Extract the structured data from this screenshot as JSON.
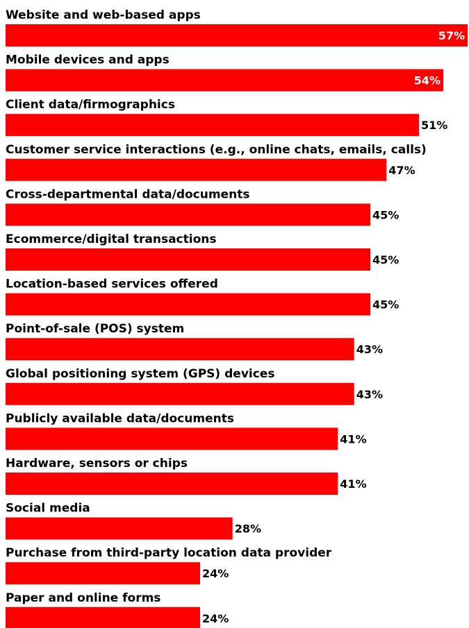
{
  "chart_data": {
    "type": "bar",
    "orientation": "horizontal",
    "title": "",
    "xlabel": "",
    "ylabel": "",
    "xlim": [
      0,
      57
    ],
    "grid": false,
    "legend": "none",
    "bar_color": "#ff0000",
    "categories": [
      "Website and web-based apps",
      "Mobile devices and apps",
      "Client data/firmographics",
      "Customer service interactions (e.g., online chats, emails, calls)",
      "Cross-departmental data/documents",
      "Ecommerce/digital transactions",
      "Location-based services offered",
      "Point-of-sale (POS) system",
      "Global positioning system (GPS) devices",
      "Publicly available data/documents",
      "Hardware, sensors or chips",
      "Social media",
      "Purchase from third-party location data provider",
      "Paper and online forms"
    ],
    "values": [
      57,
      54,
      51,
      47,
      45,
      45,
      45,
      43,
      43,
      41,
      41,
      28,
      24,
      24
    ],
    "value_labels": [
      "57%",
      "54%",
      "51%",
      "47%",
      "45%",
      "45%",
      "45%",
      "43%",
      "43%",
      "41%",
      "41%",
      "28%",
      "24%",
      "24%"
    ],
    "inside_label_count": 2
  }
}
